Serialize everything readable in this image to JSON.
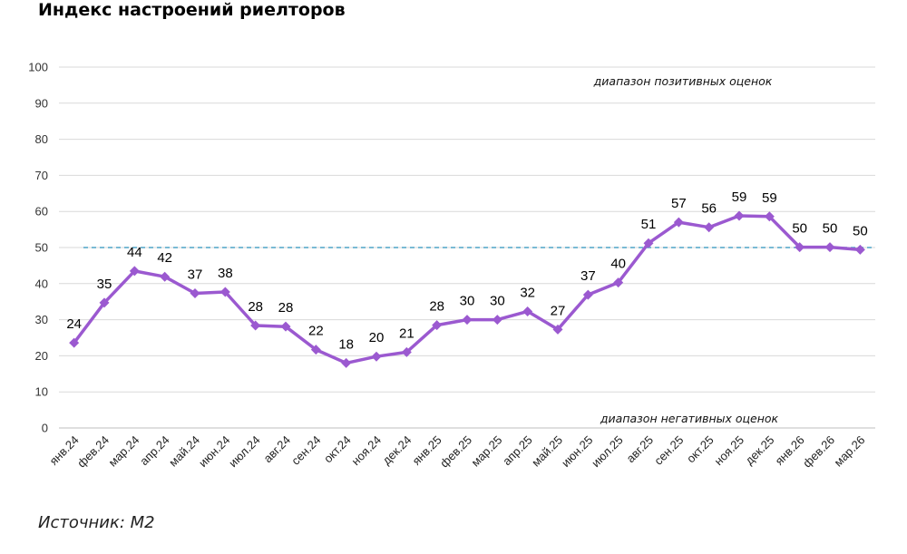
{
  "title": "Индекс настроений риелторов",
  "source": "Источник: М2",
  "colors": {
    "line": "#9b59d0",
    "reference": "#4fa3c7",
    "grid": "#d9d9d9"
  },
  "chart_data": {
    "type": "line",
    "title": "Индекс настроений риелторов",
    "categories": [
      "янв.24",
      "фев.24",
      "мар.24",
      "апр.24",
      "май.24",
      "июн.24",
      "июл.24",
      "авг.24",
      "сен.24",
      "окт.24",
      "ноя.24",
      "дек.24",
      "янв.25",
      "фев.25",
      "мар.25",
      "апр.25",
      "май.25",
      "июн.25",
      "июл.25",
      "авг.25",
      "сен.25",
      "окт.25",
      "ноя.25",
      "дек.25",
      "янв.26",
      "фев.26",
      "мар.26"
    ],
    "values": [
      24,
      35,
      44,
      42,
      37,
      38,
      28,
      28,
      22,
      18,
      20,
      21,
      28,
      30,
      30,
      32,
      27,
      37,
      40,
      51,
      57,
      56,
      59,
      59,
      50,
      50,
      50
    ],
    "plotted": [
      23.6,
      34.7,
      43.5,
      41.9,
      37.3,
      37.7,
      28.4,
      28.1,
      21.7,
      18.0,
      19.8,
      21.0,
      28.5,
      30.0,
      30.0,
      32.3,
      27.3,
      36.9,
      40.3,
      51.2,
      57.0,
      55.6,
      58.8,
      58.6,
      50.1,
      50.1,
      49.4
    ],
    "reference_value": 50,
    "ylim": [
      0,
      100
    ],
    "yticks": [
      0,
      10,
      20,
      30,
      40,
      50,
      60,
      70,
      80,
      90,
      100
    ],
    "annotations": {
      "positive": "диапазон позитивных оценок",
      "negative": "диапазон негативных оценок"
    },
    "grid": true,
    "legend": "none",
    "xlabel": "",
    "ylabel": ""
  }
}
